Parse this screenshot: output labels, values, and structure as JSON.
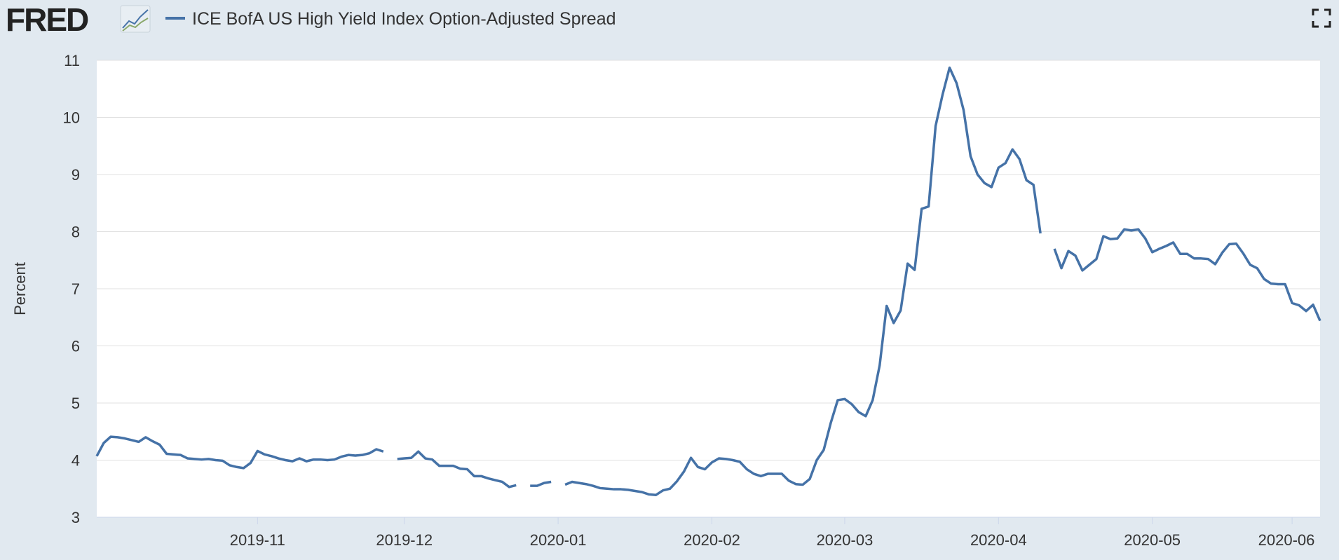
{
  "logo": "FRED",
  "chart_data": {
    "type": "line",
    "ylabel": "Percent",
    "ylim": [
      3,
      11
    ],
    "yticks": [
      3,
      4,
      5,
      6,
      7,
      8,
      9,
      10,
      11
    ],
    "grid": true,
    "categories": [
      null,
      null,
      null,
      null,
      null,
      null,
      null,
      null,
      null,
      null,
      null,
      null,
      null,
      null,
      null,
      null,
      null,
      null,
      null,
      null,
      null,
      null,
      null,
      "2019-11",
      null,
      null,
      null,
      null,
      null,
      null,
      null,
      null,
      null,
      null,
      null,
      null,
      null,
      null,
      null,
      null,
      null,
      null,
      null,
      null,
      "2019-12",
      null,
      null,
      null,
      null,
      null,
      null,
      null,
      null,
      null,
      null,
      null,
      null,
      null,
      null,
      null,
      null,
      null,
      null,
      null,
      null,
      null,
      "2020-01",
      null,
      null,
      null,
      null,
      null,
      null,
      null,
      null,
      null,
      null,
      null,
      null,
      null,
      null,
      null,
      null,
      null,
      null,
      null,
      null,
      null,
      "2020-02",
      null,
      null,
      null,
      null,
      null,
      null,
      null,
      null,
      null,
      null,
      null,
      null,
      null,
      null,
      null,
      null,
      null,
      null,
      "2020-03",
      null,
      null,
      null,
      null,
      null,
      null,
      null,
      null,
      null,
      null,
      null,
      null,
      null,
      null,
      null,
      null,
      null,
      null,
      null,
      null,
      null,
      "2020-04",
      null,
      null,
      null,
      null,
      null,
      null,
      null,
      null,
      null,
      null,
      null,
      null,
      null,
      null,
      null,
      null,
      null,
      null,
      null,
      null,
      null,
      "2020-05",
      null,
      null,
      null,
      null,
      null,
      null,
      null,
      null,
      null,
      null,
      null,
      null,
      null,
      null,
      null,
      null,
      null,
      null,
      null,
      "2020-06",
      null,
      null,
      null,
      null
    ],
    "series": [
      {
        "name": "ICE BofA US High Yield Index Option-Adjusted Spread",
        "color": "#4572a7",
        "values": [
          4.07,
          4.3,
          4.41,
          4.4,
          4.38,
          4.35,
          4.32,
          4.4,
          4.33,
          4.27,
          4.11,
          4.1,
          4.09,
          4.03,
          4.02,
          4.01,
          4.02,
          4.0,
          3.99,
          3.91,
          3.88,
          3.86,
          3.95,
          4.16,
          4.1,
          4.07,
          4.03,
          4.0,
          3.98,
          4.03,
          3.98,
          4.01,
          4.01,
          4.0,
          4.01,
          4.06,
          4.09,
          4.08,
          4.09,
          4.12,
          4.19,
          4.15,
          null,
          4.02,
          4.03,
          4.04,
          4.15,
          4.03,
          4.01,
          3.9,
          3.9,
          3.9,
          3.85,
          3.84,
          3.72,
          3.72,
          3.68,
          3.65,
          3.62,
          3.53,
          3.56,
          null,
          3.55,
          3.55,
          3.6,
          3.62,
          null,
          3.57,
          3.62,
          3.6,
          3.58,
          3.55,
          3.51,
          3.5,
          3.49,
          3.49,
          3.48,
          3.46,
          3.44,
          3.4,
          3.39,
          3.47,
          3.5,
          3.63,
          3.8,
          4.04,
          3.88,
          3.84,
          3.96,
          4.03,
          4.02,
          4.0,
          3.97,
          3.84,
          3.76,
          3.72,
          3.76,
          3.76,
          3.76,
          3.64,
          3.58,
          3.57,
          3.67,
          4.0,
          4.18,
          4.65,
          5.05,
          5.07,
          4.98,
          4.84,
          4.77,
          5.05,
          5.66,
          6.7,
          6.4,
          6.62,
          7.44,
          7.33,
          8.4,
          8.44,
          9.85,
          10.4,
          10.87,
          10.6,
          10.13,
          9.32,
          9.0,
          8.85,
          8.78,
          9.12,
          9.2,
          9.44,
          9.27,
          8.9,
          8.82,
          7.97,
          null,
          7.7,
          7.36,
          7.66,
          7.58,
          7.32,
          7.42,
          7.52,
          7.92,
          7.87,
          7.88,
          8.04,
          8.02,
          8.04,
          7.88,
          7.64,
          7.7,
          7.75,
          7.81,
          7.61,
          7.61,
          7.53,
          7.53,
          7.52,
          7.43,
          7.63,
          7.78,
          7.79,
          7.62,
          7.42,
          7.36,
          7.17,
          7.09,
          7.08,
          7.08,
          6.75,
          6.71,
          6.61,
          6.72,
          6.44
        ]
      }
    ]
  }
}
